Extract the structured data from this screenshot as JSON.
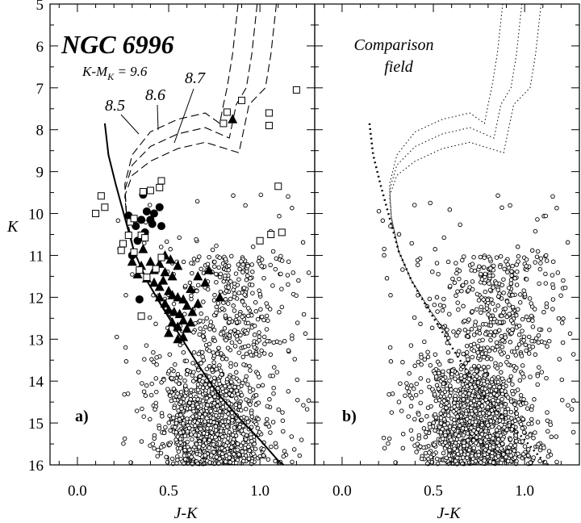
{
  "figure": {
    "panel_a": {
      "title": "NGC 6996",
      "distance_modulus": {
        "prefix": "K-M",
        "subscript": "K",
        "suffix": " = 9.6"
      },
      "tag": "a)",
      "isochrone_labels": [
        "8.5",
        "8.6",
        "8.7"
      ]
    },
    "panel_b": {
      "title_line1": "Comparison",
      "title_line2": "field",
      "tag": "b)"
    },
    "ylabel": "K",
    "xlabel_a": "J-K",
    "xlabel_b": "J-K"
  },
  "chart_data": [
    {
      "type": "scatter",
      "panel": "a",
      "title": "NGC 6996",
      "xlabel": "J-K",
      "ylabel": "K",
      "xlim": [
        -0.15,
        1.3
      ],
      "ylim": [
        16,
        5
      ],
      "y_inverted": true,
      "x_ticks": [
        "0.0",
        "0.5",
        "1.0"
      ],
      "y_ticks": [
        "5",
        "6",
        "7",
        "8",
        "9",
        "10",
        "11",
        "12",
        "13",
        "14",
        "15",
        "16"
      ],
      "annotations": [
        "K-MK = 9.6",
        "8.5",
        "8.6",
        "8.7",
        "a)"
      ],
      "series": [
        {
          "marker": "filled-circle",
          "points": [
            [
              0.28,
              10.05
            ],
            [
              0.32,
              10.3
            ],
            [
              0.35,
              10.15
            ],
            [
              0.38,
              9.95
            ],
            [
              0.41,
              10.25
            ],
            [
              0.46,
              10.3
            ],
            [
              0.45,
              9.85
            ],
            [
              0.36,
              9.55
            ],
            [
              0.33,
              10.65
            ],
            [
              0.37,
              10.45
            ],
            [
              0.42,
              10.0
            ],
            [
              0.4,
              10.15
            ],
            [
              0.34,
              12.05
            ],
            [
              0.3,
              11.0
            ]
          ]
        },
        {
          "marker": "filled-triangle",
          "points": [
            [
              0.3,
              11.15
            ],
            [
              0.35,
              11.25
            ],
            [
              0.4,
              11.15
            ],
            [
              0.42,
              11.35
            ],
            [
              0.45,
              11.2
            ],
            [
              0.48,
              11.4
            ],
            [
              0.52,
              11.5
            ],
            [
              0.55,
              11.25
            ],
            [
              0.38,
              11.55
            ],
            [
              0.42,
              11.65
            ],
            [
              0.45,
              11.75
            ],
            [
              0.47,
              11.6
            ],
            [
              0.5,
              11.85
            ],
            [
              0.52,
              11.95
            ],
            [
              0.55,
              12.0
            ],
            [
              0.58,
              12.05
            ],
            [
              0.62,
              11.8
            ],
            [
              0.45,
              12.0
            ],
            [
              0.48,
              12.15
            ],
            [
              0.5,
              12.3
            ],
            [
              0.53,
              12.35
            ],
            [
              0.56,
              12.4
            ],
            [
              0.58,
              12.55
            ],
            [
              0.6,
              12.2
            ],
            [
              0.63,
              12.35
            ],
            [
              0.66,
              12.15
            ],
            [
              0.52,
              12.6
            ],
            [
              0.55,
              12.7
            ],
            [
              0.6,
              12.75
            ],
            [
              0.62,
              12.6
            ],
            [
              0.58,
              12.95
            ],
            [
              0.55,
              13.0
            ],
            [
              0.5,
              12.85
            ],
            [
              0.7,
              11.65
            ],
            [
              0.72,
              11.35
            ],
            [
              0.66,
              11.5
            ],
            [
              0.85,
              7.75
            ],
            [
              0.78,
              12.0
            ],
            [
              0.48,
              11.0
            ],
            [
              0.51,
              11.1
            ],
            [
              0.33,
              11.45
            ],
            [
              0.36,
              10.85
            ]
          ]
        },
        {
          "marker": "open-square",
          "points": [
            [
              0.1,
              10.0
            ],
            [
              0.15,
              9.85
            ],
            [
              0.13,
              9.58
            ],
            [
              0.25,
              10.72
            ],
            [
              0.24,
              10.88
            ],
            [
              0.28,
              10.52
            ],
            [
              0.31,
              10.92
            ],
            [
              0.35,
              10.52
            ],
            [
              0.37,
              10.58
            ],
            [
              0.36,
              9.48
            ],
            [
              0.4,
              9.45
            ],
            [
              0.46,
              9.22
            ],
            [
              0.45,
              9.38
            ],
            [
              0.29,
              10.2
            ],
            [
              0.31,
              10.12
            ],
            [
              0.34,
              11.35
            ],
            [
              0.38,
              11.52
            ],
            [
              0.35,
              12.45
            ],
            [
              0.43,
              11.32
            ],
            [
              0.8,
              7.85
            ],
            [
              0.82,
              7.58
            ],
            [
              0.9,
              7.3
            ],
            [
              1.05,
              7.6
            ],
            [
              1.05,
              7.9
            ],
            [
              1.1,
              9.35
            ],
            [
              1.2,
              7.05
            ],
            [
              1.0,
              10.65
            ],
            [
              1.06,
              10.5
            ],
            [
              1.12,
              10.45
            ],
            [
              0.46,
              11.05
            ]
          ]
        }
      ]
    },
    {
      "type": "scatter",
      "panel": "b",
      "title": "Comparison field",
      "xlabel": "J-K",
      "ylabel": "K",
      "xlim": [
        -0.15,
        1.3
      ],
      "ylim": [
        16,
        5
      ],
      "y_inverted": true,
      "x_ticks": [
        "0.0",
        "0.5",
        "1.0"
      ],
      "annotations": [
        "b)"
      ],
      "series": [
        {
          "marker": "open-circle",
          "note": "field stars"
        }
      ]
    }
  ]
}
